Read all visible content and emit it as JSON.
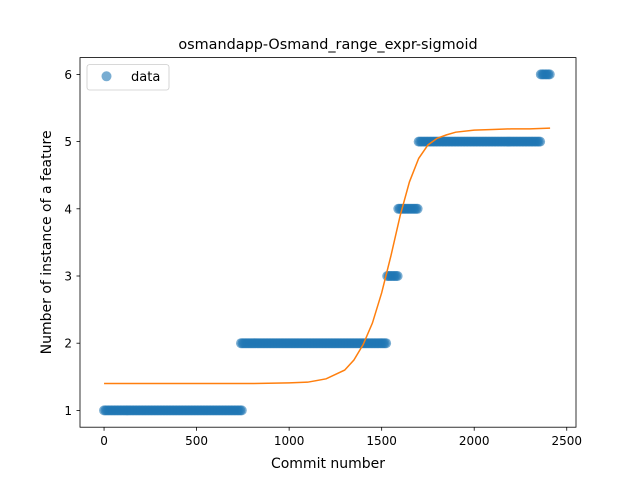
{
  "chart_data": {
    "type": "scatter",
    "title": "osmandapp-Osmand_range_expr-sigmoid",
    "xlabel": "Commit number",
    "ylabel": "Number of instance of a feature",
    "xlim": [
      -130,
      2550
    ],
    "ylim": [
      0.75,
      6.25
    ],
    "x_ticks": [
      "0",
      "500",
      "1000",
      "1500",
      "2000",
      "2500"
    ],
    "y_ticks": [
      "1",
      "2",
      "3",
      "4",
      "5",
      "6"
    ],
    "grid": false,
    "legend": {
      "position": "upper left",
      "entries": [
        "data"
      ]
    },
    "colors": {
      "data": "#1f77b4",
      "fit": "#ff7f0e"
    },
    "series": [
      {
        "name": "data",
        "kind": "scatter",
        "segments": [
          {
            "x_start": 0,
            "x_end": 750,
            "y": 1
          },
          {
            "x_start": 740,
            "x_end": 1530,
            "y": 2
          },
          {
            "x_start": 1530,
            "x_end": 1590,
            "y": 3
          },
          {
            "x_start": 1590,
            "x_end": 1700,
            "y": 4
          },
          {
            "x_start": 1700,
            "x_end": 2360,
            "y": 5
          },
          {
            "x_start": 2360,
            "x_end": 2410,
            "y": 6
          }
        ]
      },
      {
        "kind": "line",
        "x": [
          0,
          200,
          400,
          600,
          800,
          1000,
          1100,
          1200,
          1300,
          1350,
          1400,
          1450,
          1500,
          1550,
          1600,
          1650,
          1700,
          1750,
          1800,
          1850,
          1900,
          2000,
          2100,
          2200,
          2300,
          2410
        ],
        "y": [
          1.4,
          1.4,
          1.4,
          1.4,
          1.4,
          1.41,
          1.42,
          1.47,
          1.6,
          1.75,
          1.98,
          2.3,
          2.75,
          3.3,
          3.9,
          4.4,
          4.75,
          4.95,
          5.05,
          5.1,
          5.14,
          5.17,
          5.18,
          5.19,
          5.19,
          5.2
        ]
      }
    ]
  }
}
